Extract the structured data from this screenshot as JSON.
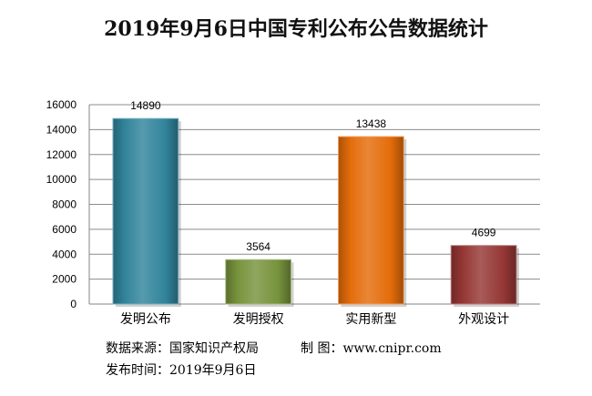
{
  "chart_data": {
    "type": "bar",
    "title": "2019年9月6日中国专利公布公告数据统计",
    "categories": [
      "发明公布",
      "发明授权",
      "实用新型",
      "外观设计"
    ],
    "values": [
      14890,
      3564,
      13438,
      4699
    ],
    "xlabel": "",
    "ylabel": "",
    "ylim": [
      0,
      16000
    ],
    "yticks": [
      0,
      2000,
      4000,
      6000,
      8000,
      10000,
      12000,
      14000,
      16000
    ],
    "grid": true,
    "legend": "none",
    "colors": [
      "#31849b",
      "#77933c",
      "#e46c0a",
      "#953735"
    ]
  },
  "footer": {
    "source": "数据来源：国家知识产权局",
    "maker": "制 图：www.cnipr.com",
    "date": "发布时间：2019年9月6日"
  }
}
